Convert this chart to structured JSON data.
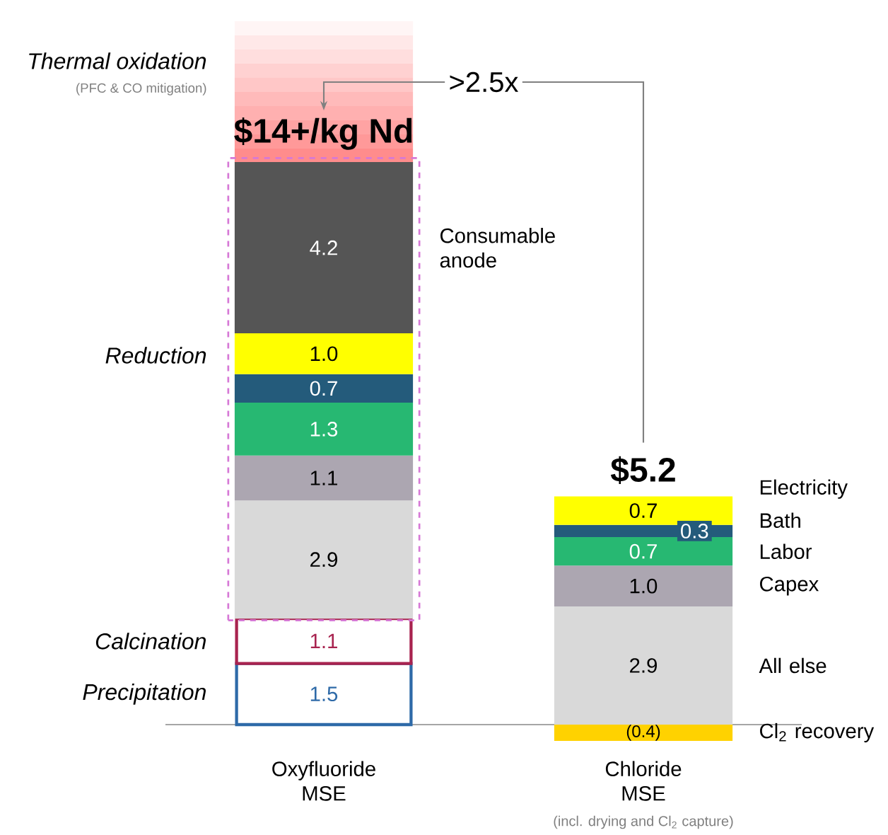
{
  "chart_data": {
    "type": "bar",
    "stacked": true,
    "categories": [
      "Oxyfluoride MSE",
      "Chloride MSE"
    ],
    "series": [
      {
        "name": "Precipitation",
        "color": "#2e6aa8",
        "line_style": "solid",
        "values": [
          1.5,
          null
        ],
        "value_labels": [
          "1.5",
          null
        ]
      },
      {
        "name": "Calcination",
        "color": "#a8234f",
        "line_style": "solid",
        "values": [
          1.1,
          null
        ],
        "value_labels": [
          "1.1",
          null
        ]
      },
      {
        "name": "All else",
        "color": "#d9d9d9",
        "values": [
          2.9,
          2.9
        ],
        "value_labels": [
          "2.9",
          "2.9"
        ]
      },
      {
        "name": "Capex",
        "color": "#aca6b1",
        "values": [
          1.1,
          1.0
        ],
        "value_labels": [
          "1.1",
          "1.0"
        ]
      },
      {
        "name": "Labor",
        "color": "#27b872",
        "values": [
          1.3,
          0.7
        ],
        "value_labels": [
          "1.3",
          "0.7"
        ]
      },
      {
        "name": "Bath",
        "color": "#245b7b",
        "values": [
          0.7,
          0.3
        ],
        "value_labels": [
          "0.7",
          "0.3"
        ]
      },
      {
        "name": "Electricity",
        "color": "#ffff00",
        "values": [
          1.0,
          0.7
        ],
        "value_labels": [
          "1.0",
          "0.7"
        ]
      },
      {
        "name": "Consumable anode",
        "color": "#555555",
        "values": [
          4.2,
          null
        ],
        "value_labels": [
          "4.2",
          null
        ]
      },
      {
        "name": "Cl$_{2}$ recovery",
        "color": "#ffd200",
        "values": [
          null,
          -0.4
        ],
        "value_labels": [
          null,
          "(0.4)"
        ]
      }
    ],
    "totals": [
      "$14+/kg Nd",
      "$5.2"
    ],
    "annotations": [
      "Thermal oxidation",
      "(PFC & CO mitigation)",
      "Reduction",
      ">2.5x",
      "(incl. drying and Cl$_{2}$ capture)"
    ]
  }
}
